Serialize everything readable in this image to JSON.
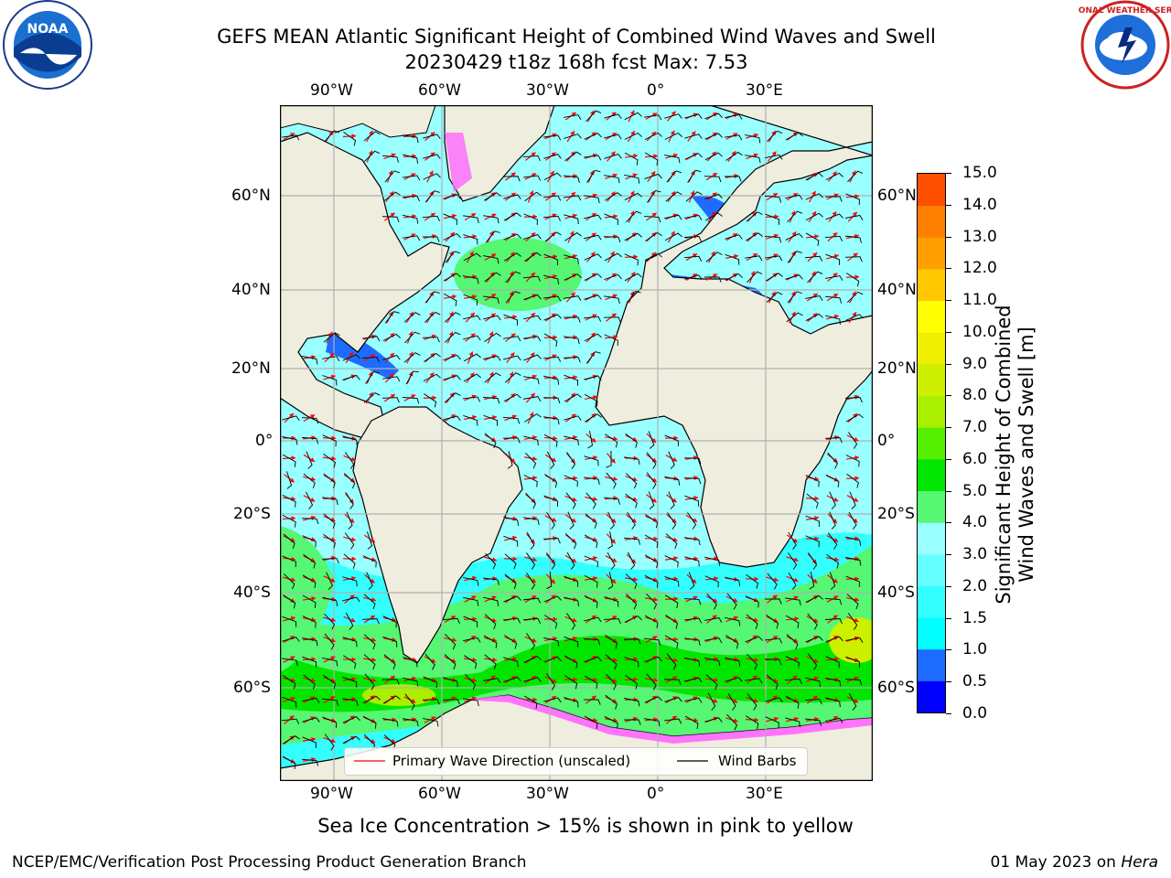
{
  "title_line1": "GEFS MEAN Atlantic Significant Height of Combined Wind Waves and Swell",
  "title_line2": "20230429 t18z 168h fcst   Max: 7.53",
  "lon_labels": [
    "90°W",
    "60°W",
    "30°W",
    "0°",
    "30°E"
  ],
  "lat_labels_left": [
    "60°N",
    "40°N",
    "20°N",
    "0°",
    "20°S",
    "40°S",
    "60°S"
  ],
  "lat_labels_right": [
    "60°N",
    "40°N",
    "20°N",
    "0°",
    "20°S",
    "40°S",
    "60°S"
  ],
  "colorbar": {
    "title_line1": "Significant Height of Combined",
    "title_line2": "Wind Waves and Swell [m]",
    "tick_labels": [
      "0.0",
      "0.5",
      "1.0",
      "1.5",
      "2.0",
      "3.0",
      "4.0",
      "5.0",
      "6.0",
      "7.0",
      "8.0",
      "9.0",
      "10.0",
      "11.0",
      "12.0",
      "13.0",
      "14.0",
      "15.0"
    ],
    "colors": [
      "#0000ff",
      "#1e6cff",
      "#00ffff",
      "#33ffff",
      "#66ffff",
      "#99ffff",
      "#55f773",
      "#00e600",
      "#55ee00",
      "#aaee00",
      "#ccf000",
      "#eef000",
      "#ffff00",
      "#ffc800",
      "#ffa000",
      "#ff8000",
      "#ff5000",
      "#ff2000",
      "#ff0000"
    ]
  },
  "legend": {
    "wave_direction": "Primary Wave Direction (unscaled)",
    "wind_barbs": "Wind Barbs"
  },
  "sea_ice_note": "Sea Ice Concentration > 15% is shown in pink to yellow",
  "footer_left": "NCEP/EMC/Verification Post Processing Product Generation Branch",
  "footer_right_date": "01 May 2023 on ",
  "footer_right_host": "Hera",
  "logos": {
    "noaa_text": "NOAA",
    "nws_text": "NATIONAL WEATHER SERVICE"
  },
  "colors": {
    "land": "#efedde",
    "ocean_low": "#99ffff",
    "ocean_mid": "#33ffff",
    "ocean_high": "#55f773",
    "ocean_peak": "#00e600",
    "wave_arrow": "#ff0000",
    "barb": "#000000",
    "grid": "#b0b0b0"
  }
}
